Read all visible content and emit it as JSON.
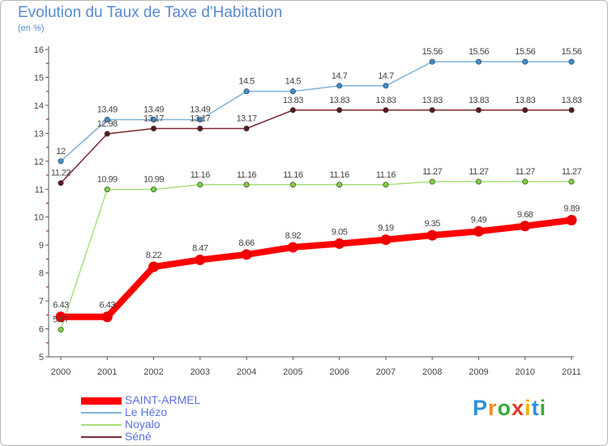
{
  "header": {
    "title": "Evolution du Taux de Taxe d'Habitation",
    "subtitle": "(en %)"
  },
  "colors": {
    "axis": "#555555",
    "grid": "#dddddd",
    "label": "#444444",
    "tick_red": "#cc0000"
  },
  "logo": {
    "text": "Proxiti",
    "letters": [
      "P",
      "r",
      "o",
      "x",
      "i",
      "t",
      "i"
    ],
    "colors": [
      "#2e8fd8",
      "#f08a1c",
      "#3aab3a",
      "#e03a2a",
      "#f0b400",
      "#2e8fd8",
      "#3aab3a"
    ]
  },
  "chart_data": {
    "type": "line",
    "title": "Evolution du Taux de Taxe d'Habitation",
    "subtitle": "(en %)",
    "x": [
      "2000",
      "2001",
      "2002",
      "2003",
      "2004",
      "2005",
      "2006",
      "2007",
      "2008",
      "2009",
      "2010",
      "2011"
    ],
    "ylim": [
      5,
      16
    ],
    "yticks": [
      "5",
      "6",
      "7",
      "8",
      "9",
      "10",
      "11",
      "12",
      "13",
      "14",
      "15",
      "16"
    ],
    "grid": false,
    "legend_position": "bottom-left",
    "series": [
      {
        "name": "SAINT-ARMEL",
        "color": "#ff0000",
        "marker_color": "#ee0000",
        "width": 8,
        "values": [
          6.43,
          6.43,
          8.22,
          8.47,
          8.66,
          8.92,
          9.05,
          9.19,
          9.35,
          9.49,
          9.68,
          9.89
        ],
        "labels": [
          "6.43",
          "6.43",
          "8.22",
          "8.47",
          "8.66",
          "8.92",
          "9.05",
          "9.19",
          "9.35",
          "9.49",
          "9.68",
          "9.89"
        ]
      },
      {
        "name": "Le Hézo",
        "color": "#7fb2de",
        "marker_color": "#3e8ed0",
        "width": 1.5,
        "values": [
          12,
          13.49,
          13.49,
          13.49,
          14.5,
          14.5,
          14.7,
          14.7,
          15.56,
          15.56,
          15.56,
          15.56
        ],
        "labels": [
          "12",
          "13.49",
          "13.49",
          "13.49",
          "14.5",
          "14.5",
          "14.7",
          "14.7",
          "15.56",
          "15.56",
          "15.56",
          "15.56"
        ]
      },
      {
        "name": "Noyalo",
        "color": "#a8e07a",
        "marker_color": "#7ccf3e",
        "width": 1.5,
        "values": [
          5.97,
          10.99,
          10.99,
          11.16,
          11.16,
          11.16,
          11.16,
          11.16,
          11.27,
          11.27,
          11.27,
          11.27
        ],
        "labels": [
          "5.97",
          "10.99",
          "10.99",
          "11.16",
          "11.16",
          "11.16",
          "11.16",
          "11.16",
          "11.27",
          "11.27",
          "11.27",
          "11.27"
        ]
      },
      {
        "name": "Séné",
        "color": "#7a2a30",
        "marker_color": "#5a1a20",
        "width": 1.5,
        "values": [
          11.22,
          12.98,
          13.17,
          13.17,
          13.17,
          13.83,
          13.83,
          13.83,
          13.83,
          13.83,
          13.83,
          13.83
        ],
        "labels": [
          "11.22",
          "12.98",
          "13.17",
          "13.17",
          "13.17",
          "13.83",
          "13.83",
          "13.83",
          "13.83",
          "13.83",
          "13.83",
          "13.83"
        ]
      }
    ]
  }
}
